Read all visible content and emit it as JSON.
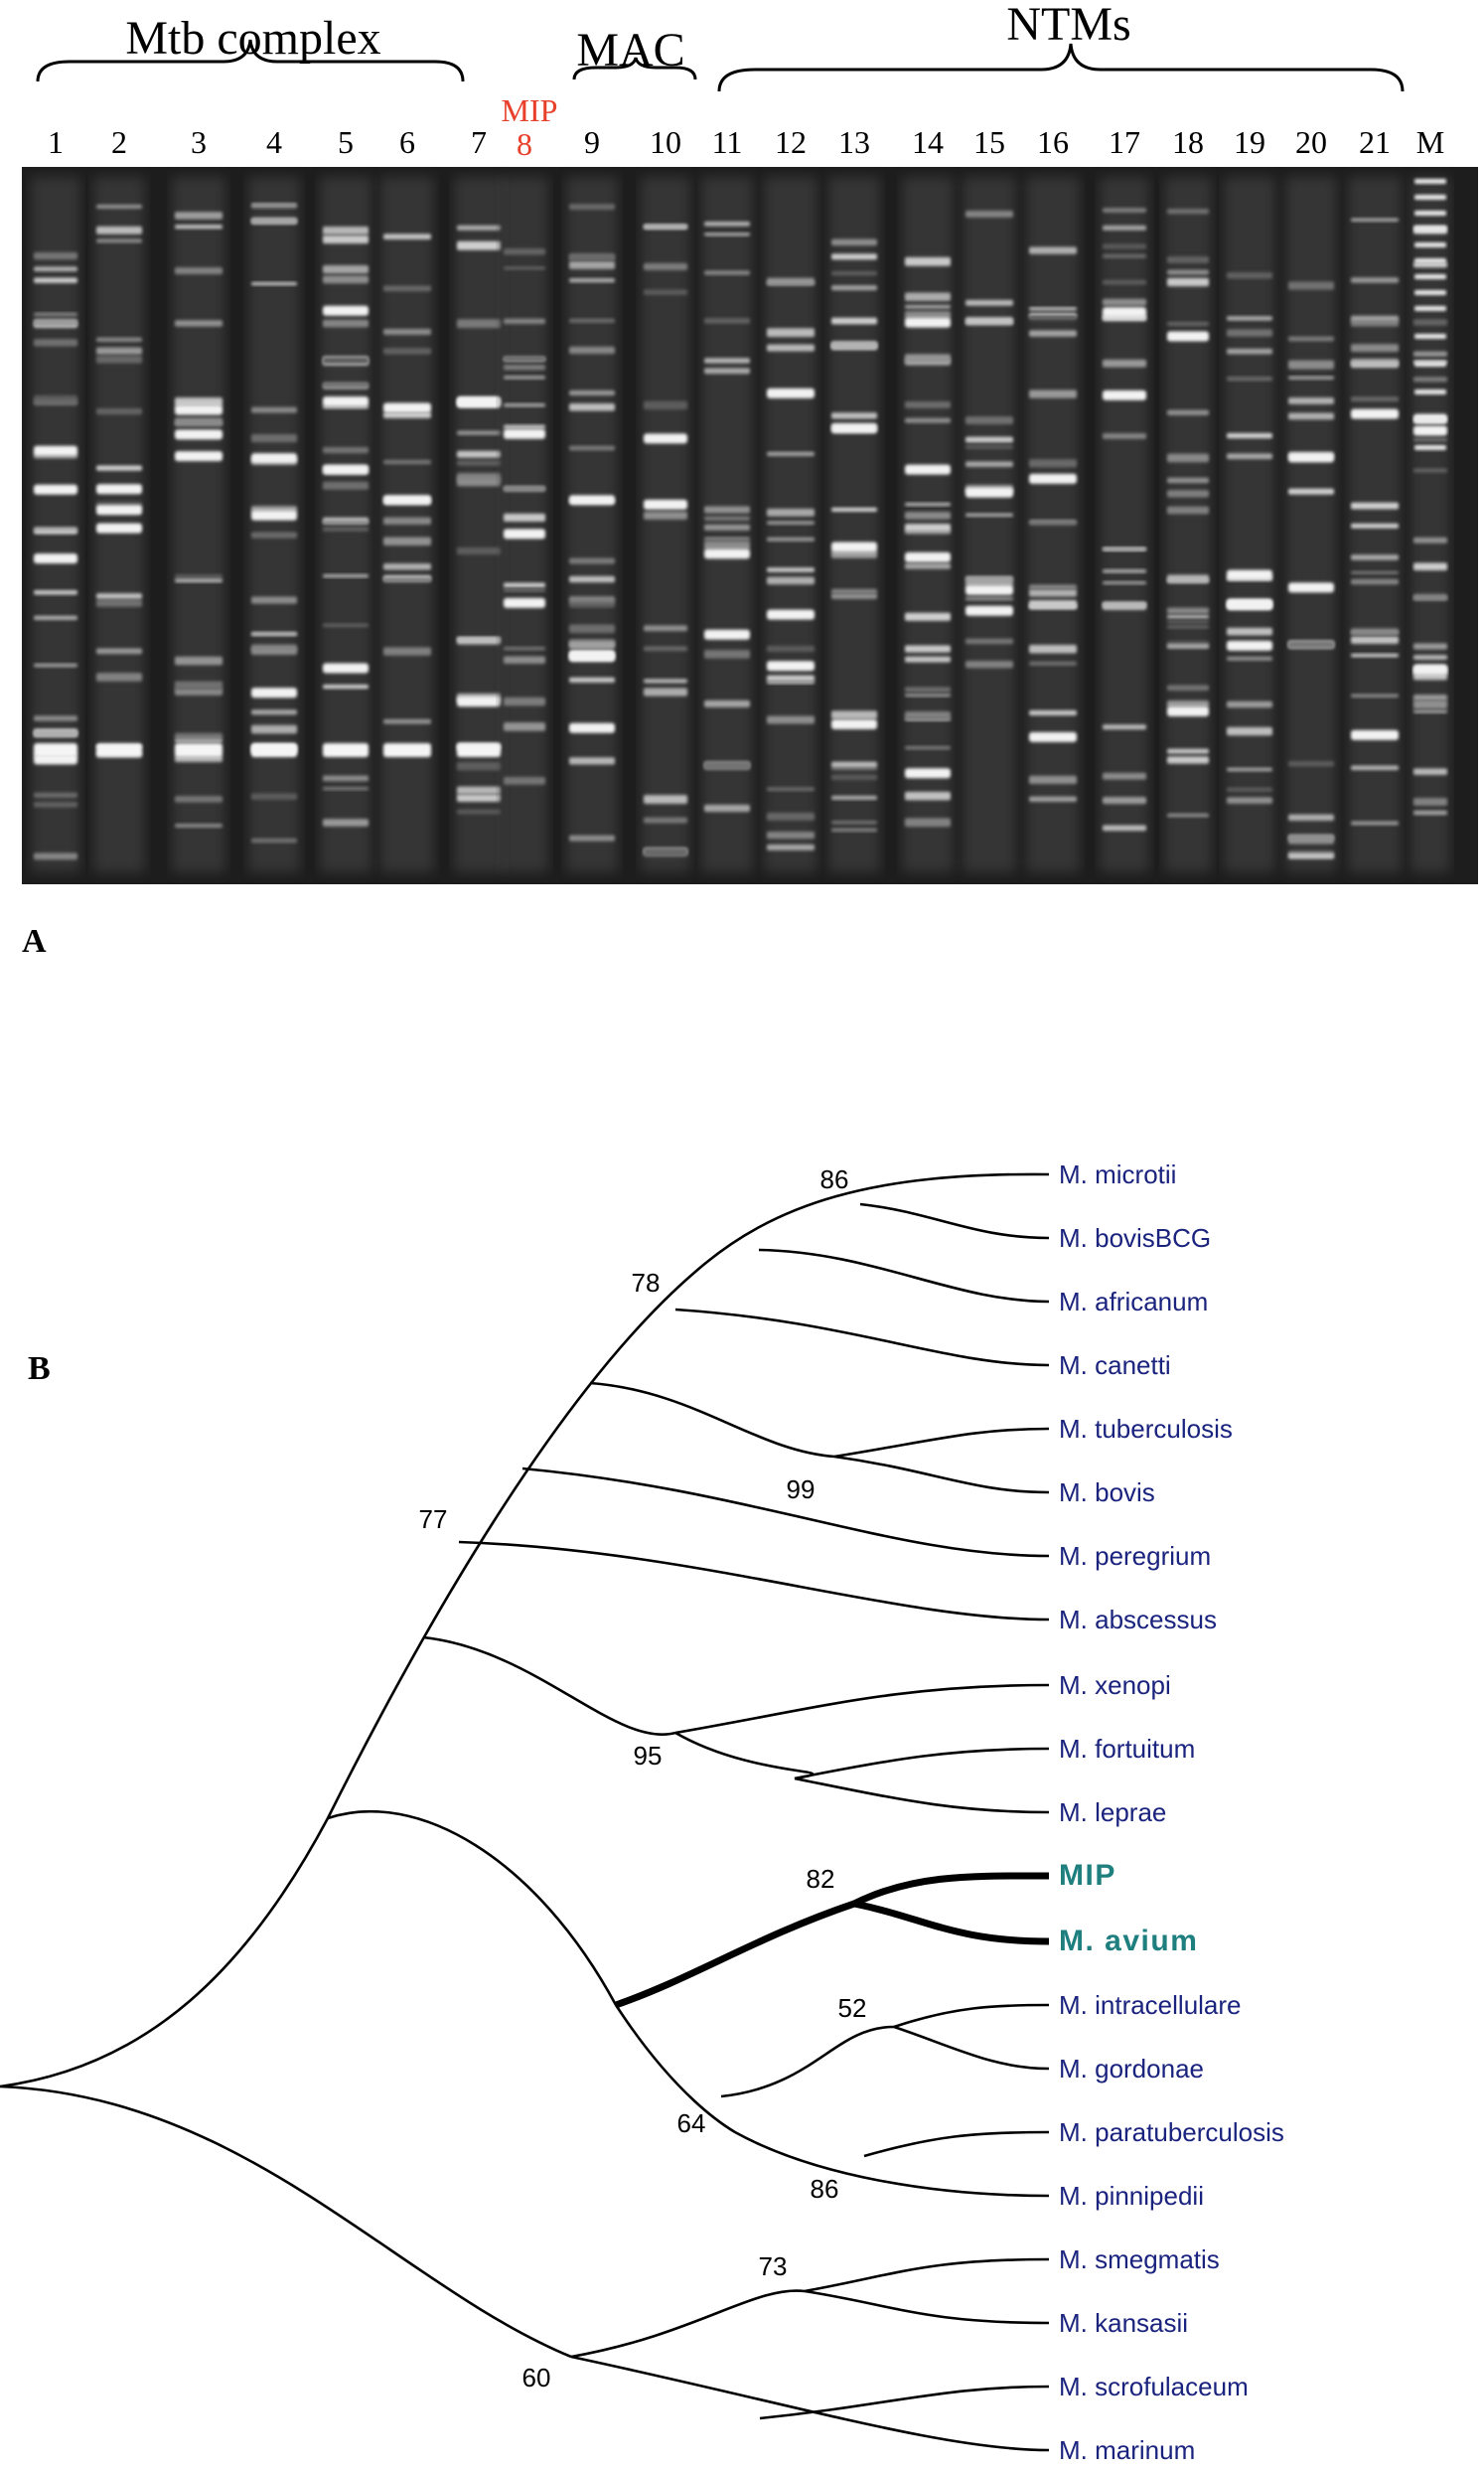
{
  "panel_a": {
    "label": "A",
    "group_labels": [
      "Mtb complex",
      "MAC",
      "NTMs"
    ],
    "lane_labels": [
      "1",
      "2",
      "3",
      "4",
      "5",
      "6",
      "7",
      "8",
      "9",
      "10",
      "11",
      "12",
      "13",
      "14",
      "15",
      "16",
      "17",
      "18",
      "19",
      "20",
      "21",
      "M"
    ],
    "highlight_lane": "8",
    "highlight_tag": "MIP",
    "highlight_color": "#e8402a"
  },
  "panel_b": {
    "label": "B",
    "taxa": [
      "M. microtii",
      "M. bovisBCG",
      "M. africanum",
      "M. canetti",
      "M. tuberculosis",
      "M. bovis",
      "M. peregrium",
      "M. abscessus",
      "M. xenopi",
      "M. fortuitum",
      "M. leprae",
      "MIP",
      "M. avium",
      "M. intracellulare",
      "M. gordonae",
      "M. paratuberculosis",
      "M. pinnipedii",
      "M. smegmatis",
      "M. kansasii",
      "M. scrofulaceum",
      "M. marinum"
    ],
    "highlight_taxa": [
      "MIP",
      "M. avium"
    ],
    "taxon_color": "#1a237e",
    "highlight_color": "#1f7f7f",
    "bootstrap": [
      "86",
      "78",
      "77",
      "99",
      "95",
      "82",
      "52",
      "64",
      "86",
      "73",
      "60"
    ]
  }
}
